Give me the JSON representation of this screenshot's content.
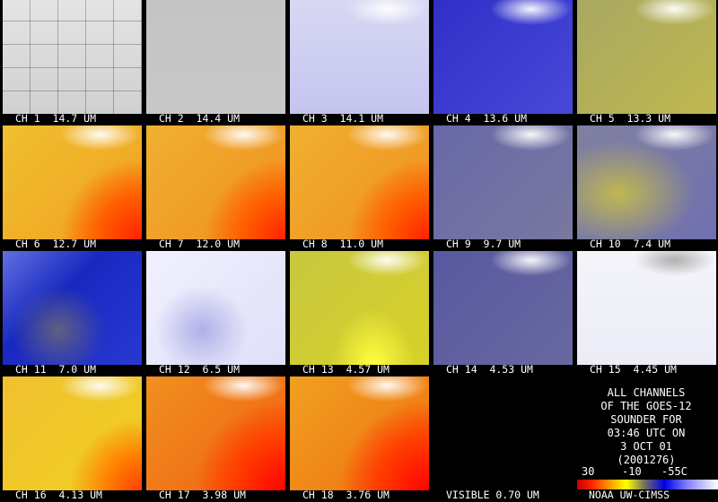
{
  "panels": [
    {
      "label": "CH 1  14.7 UM"
    },
    {
      "label": "CH 2  14.4 UM"
    },
    {
      "label": "CH 3  14.1 UM"
    },
    {
      "label": "CH 4  13.6 UM"
    },
    {
      "label": "CH 5  13.3 UM"
    },
    {
      "label": "CH 6  12.7 UM"
    },
    {
      "label": "CH 7  12.0 UM"
    },
    {
      "label": "CH 8  11.0 UM"
    },
    {
      "label": "CH 9  9.7 UM"
    },
    {
      "label": "CH 10  7.4 UM"
    },
    {
      "label": "CH 11  7.0 UM"
    },
    {
      "label": "CH 12  6.5 UM"
    },
    {
      "label": "CH 13  4.57 UM"
    },
    {
      "label": "CH 14  4.53 UM"
    },
    {
      "label": "CH 15  4.45 UM"
    },
    {
      "label": "CH 16  4.13 UM"
    },
    {
      "label": "CH 17  3.98 UM"
    },
    {
      "label": "CH 18  3.76 UM"
    },
    {
      "label": "VISIBLE 0.70 UM"
    }
  ],
  "info": {
    "lines": [
      "ALL CHANNELS",
      "OF THE GOES-12",
      "SOUNDER FOR",
      "03:46 UTC ON",
      "3 OCT 01",
      "(2001276)"
    ]
  },
  "colorbar": {
    "labels": [
      "30",
      "-10",
      "-55C"
    ]
  },
  "credit": "NOAA UW-CIMSS"
}
